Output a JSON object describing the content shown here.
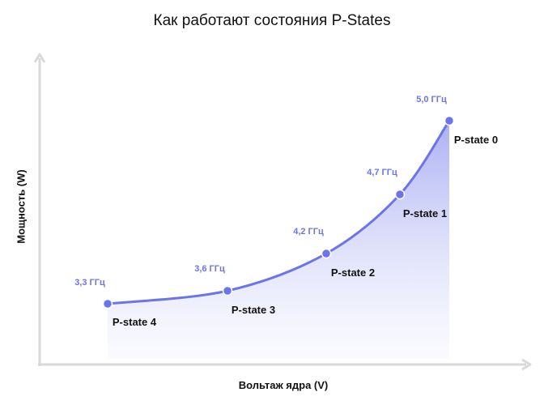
{
  "title": "Как работают состояния P-States",
  "ylabel": "Мощность (W)",
  "xlabel": "Вольтаж ядра (V)",
  "colors": {
    "curve": "#6b74ea",
    "point": "#6b74ea",
    "axis": "#d9d9d9",
    "fill": "#8f96ef"
  },
  "states": [
    {
      "state": "P-state 4",
      "freq": "3,3 ГГц"
    },
    {
      "state": "P-state 3",
      "freq": "3,6 ГГц"
    },
    {
      "state": "P-state 2",
      "freq": "4,2 ГГц"
    },
    {
      "state": "P-state 1",
      "freq": "4,7 ГГц"
    },
    {
      "state": "P-state 0",
      "freq": "5,0 ГГц"
    }
  ]
}
